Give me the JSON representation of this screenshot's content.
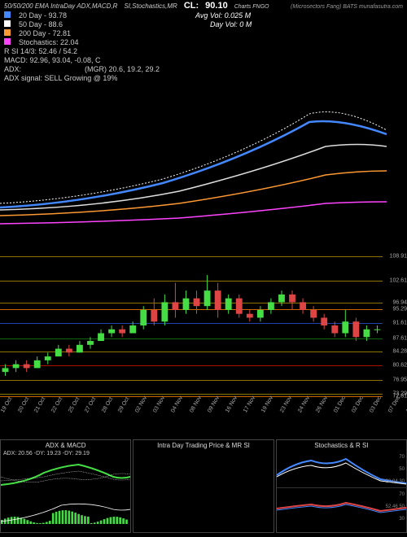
{
  "header": {
    "title_left": "50/50/200 EMA IntraDay ADX,MACD,R",
    "title_mid": "SI,Stochastics,MR",
    "cl_label": "CL:",
    "cl_value": "90.10",
    "charts_label": "Charts FNGO",
    "brand": "(Microsectors Fang) BATS munafasutra.com",
    "avg_vol_label": "Avg Vol: 0.025   M",
    "day_vol_label": "Day Vol: 0   M",
    "ema20_label": "20  Day  - 93.78",
    "ema50_label": "50  Day  - 88.6",
    "ema200_label": "200  Day  - 72.81",
    "stoch_label": "Stochastics: 22.04",
    "rsi_label": "R     SI 14/3: 52.46  / 54.2",
    "macd_label": "MACD: 92.96, 93.04,  -0.08, C",
    "adx_label": "ADX:",
    "mgr_label": "(MGR) 20.6,  19.2,  29.2",
    "adx_signal": "ADX  signal: SELL Growing @ 19%"
  },
  "colors": {
    "ema20": "#4488ff",
    "ema50": "#ffffff",
    "ema200": "#ff9933",
    "extra": "#ff44ff",
    "green": "#44dd44",
    "red": "#dd4444",
    "grid_gold": "#8b7500",
    "grid_orange": "#cc6600",
    "grid_red": "#aa1100",
    "grid_green": "#116611",
    "grid_blue": "#2244aa"
  },
  "price_levels": [
    {
      "v": "108.91",
      "c": "#8b7500"
    },
    {
      "v": "102.61",
      "c": "#8b7500"
    },
    {
      "v": "96.94",
      "c": "#8b7500"
    },
    {
      "v": "95.29",
      "c": "#cc6600"
    },
    {
      "v": "91.61",
      "c": "#2244aa"
    },
    {
      "v": "87.61",
      "c": "#116611"
    },
    {
      "v": "84.28",
      "c": "#8b7500"
    },
    {
      "v": "80.62",
      "c": "#aa1100"
    },
    {
      "v": "76.95",
      "c": "#8b7500"
    },
    {
      "v": "73.29",
      "c": "#8b7500"
    },
    {
      "v": "72.81",
      "c": "#cc6600"
    }
  ],
  "dates": [
    "19 Oct",
    "20 Oct",
    "21 Oct",
    "22 Oct",
    "25 Oct",
    "27 Oct",
    "28 Oct",
    "29 Oct",
    "02 Nov",
    "03 Nov",
    "04 Nov",
    "08 Nov",
    "09 Nov",
    "16 Nov",
    "17 Nov",
    "19 Nov",
    "23 Nov",
    "24 Nov",
    "26 Nov",
    "01 Dec",
    "02 Dec",
    "03 Dec",
    "07 Dec",
    "13 Dec",
    "15 Dec",
    "17 Dec",
    "23 Dec",
    "28 Dec",
    "29 Dec",
    "30 Dec",
    "31 Dec",
    "03 Jan",
    "05 Jan",
    "06 Jan",
    "07 Jan",
    "10 Jan"
  ],
  "candles": [
    {
      "o": 79,
      "c": 80,
      "l": 78,
      "h": 81,
      "g": 1
    },
    {
      "o": 80,
      "c": 81,
      "l": 79,
      "h": 82,
      "g": 1
    },
    {
      "o": 81,
      "c": 80,
      "l": 79,
      "h": 82,
      "g": 0
    },
    {
      "o": 80,
      "c": 82,
      "l": 80,
      "h": 83,
      "g": 1
    },
    {
      "o": 82,
      "c": 83,
      "l": 81,
      "h": 84,
      "g": 1
    },
    {
      "o": 83,
      "c": 85,
      "l": 83,
      "h": 86,
      "g": 1
    },
    {
      "o": 85,
      "c": 84,
      "l": 83,
      "h": 86,
      "g": 0
    },
    {
      "o": 84,
      "c": 86,
      "l": 84,
      "h": 87,
      "g": 1
    },
    {
      "o": 86,
      "c": 87,
      "l": 85,
      "h": 88,
      "g": 1
    },
    {
      "o": 87,
      "c": 89,
      "l": 87,
      "h": 90,
      "g": 1
    },
    {
      "o": 89,
      "c": 90,
      "l": 88,
      "h": 91,
      "g": 1
    },
    {
      "o": 90,
      "c": 89,
      "l": 88,
      "h": 91,
      "g": 0
    },
    {
      "o": 89,
      "c": 91,
      "l": 89,
      "h": 92,
      "g": 1
    },
    {
      "o": 91,
      "c": 95,
      "l": 90,
      "h": 96,
      "g": 1
    },
    {
      "o": 95,
      "c": 92,
      "l": 91,
      "h": 98,
      "g": 0
    },
    {
      "o": 92,
      "c": 97,
      "l": 91,
      "h": 99,
      "g": 1
    },
    {
      "o": 97,
      "c": 95,
      "l": 93,
      "h": 102,
      "g": 0
    },
    {
      "o": 95,
      "c": 98,
      "l": 94,
      "h": 100,
      "g": 1
    },
    {
      "o": 98,
      "c": 96,
      "l": 94,
      "h": 100,
      "g": 0
    },
    {
      "o": 96,
      "c": 100,
      "l": 95,
      "h": 104,
      "g": 1
    },
    {
      "o": 100,
      "c": 95,
      "l": 93,
      "h": 102,
      "g": 0
    },
    {
      "o": 95,
      "c": 98,
      "l": 94,
      "h": 99,
      "g": 1
    },
    {
      "o": 98,
      "c": 94,
      "l": 93,
      "h": 99,
      "g": 0
    },
    {
      "o": 94,
      "c": 93,
      "l": 92,
      "h": 95,
      "g": 0
    },
    {
      "o": 93,
      "c": 95,
      "l": 92,
      "h": 96,
      "g": 1
    },
    {
      "o": 95,
      "c": 97,
      "l": 94,
      "h": 98,
      "g": 1
    },
    {
      "o": 97,
      "c": 99,
      "l": 96,
      "h": 100,
      "g": 1
    },
    {
      "o": 99,
      "c": 97,
      "l": 95,
      "h": 100,
      "g": 0
    },
    {
      "o": 97,
      "c": 95,
      "l": 94,
      "h": 98,
      "g": 0
    },
    {
      "o": 95,
      "c": 93,
      "l": 92,
      "h": 96,
      "g": 0
    },
    {
      "o": 93,
      "c": 91,
      "l": 90,
      "h": 94,
      "g": 0
    },
    {
      "o": 91,
      "c": 89,
      "l": 88,
      "h": 92,
      "g": 0
    },
    {
      "o": 89,
      "c": 92,
      "l": 88,
      "h": 95,
      "g": 1
    },
    {
      "o": 92,
      "c": 88,
      "l": 87,
      "h": 93,
      "g": 0
    },
    {
      "o": 88,
      "c": 90,
      "l": 87,
      "h": 91,
      "g": 1
    },
    {
      "o": 90,
      "c": 90,
      "l": 89,
      "h": 91,
      "g": 1
    }
  ],
  "bottom_panels": {
    "adx_title": "ADX   & MACD",
    "adx_stats": "ADX: 20.56   -DY: 19.23  -DY: 29.19",
    "intra_title": "Intra   Day Trading Price   & MR             SI",
    "stoch_title": "Stochastics & R           SI",
    "stoch_r1": "70",
    "stoch_r2": "50",
    "stoch_r3": "22.04 30",
    "rsi_r1": "70",
    "rsi_r2": "52.46 50",
    "rsi_r3": "30"
  }
}
